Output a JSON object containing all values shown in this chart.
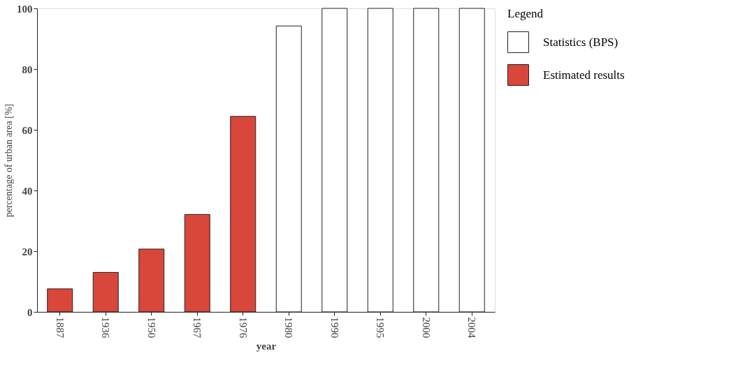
{
  "chart_data": {
    "type": "bar",
    "xlabel": "year",
    "ylabel": "percentage of urban area [%]",
    "legend_title": "Legend",
    "categories": [
      "1887",
      "1936",
      "1950",
      "1967",
      "1976",
      "1980",
      "1990",
      "1995",
      "2000",
      "2004"
    ],
    "series": [
      {
        "name": "Statistics (BPS)",
        "color": "#ffffff",
        "values": [
          null,
          null,
          null,
          null,
          null,
          94.2,
          100,
          100,
          100,
          100
        ]
      },
      {
        "name": "Estimated results",
        "color": "#d9473b",
        "values": [
          7.6,
          13.0,
          20.7,
          32.1,
          64.4,
          null,
          null,
          null,
          null,
          null
        ]
      }
    ],
    "ylim": [
      0,
      100
    ],
    "yticks": [
      0,
      20,
      40,
      60,
      80,
      100
    ],
    "grid": false,
    "legend": "right"
  }
}
